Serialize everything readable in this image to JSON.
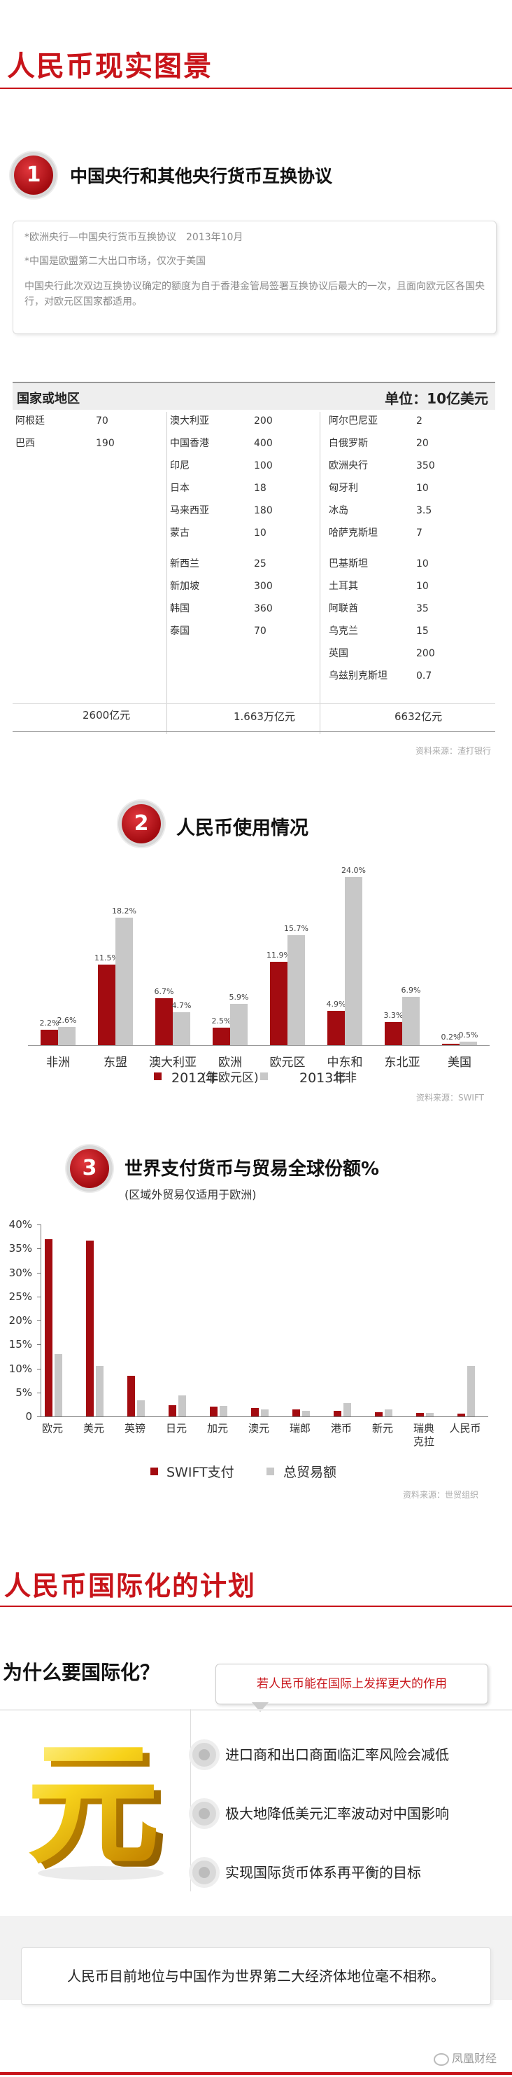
{
  "header": {
    "title": "人民币现实图景"
  },
  "section1": {
    "number": "1",
    "title": "中国央行和其他央行货币互换协议",
    "note1": "*欧洲央行—中国央行货币互换协议　2013年10月",
    "note2": "*中国是欧盟第二大出口市场，仅次于美国",
    "note3": "中国央行此次双边互换协议确定的额度为自于香港金管局签署互换协议后最大的一次，且面向欧元区各国央行，对欧元区国家都适用。",
    "table_header_left": "国家或地区",
    "table_header_right": "单位：10亿美元",
    "col1": [
      {
        "name": "阿根廷",
        "value": "70"
      },
      {
        "name": "巴西",
        "value": "190"
      }
    ],
    "col2": [
      {
        "name": "澳大利亚",
        "value": "200"
      },
      {
        "name": "中国香港",
        "value": "400"
      },
      {
        "name": "印尼",
        "value": "100"
      },
      {
        "name": "日本",
        "value": "18"
      },
      {
        "name": "马来西亚",
        "value": "180"
      },
      {
        "name": "蒙古",
        "value": "10"
      },
      {
        "name": "新西兰",
        "value": "25"
      },
      {
        "name": "新加坡",
        "value": "300"
      },
      {
        "name": "韩国",
        "value": "360"
      },
      {
        "name": "泰国",
        "value": "70"
      }
    ],
    "col3": [
      {
        "name": "阿尔巴尼亚",
        "value": "2"
      },
      {
        "name": "白俄罗斯",
        "value": "20"
      },
      {
        "name": "欧洲央行",
        "value": "350"
      },
      {
        "name": "匈牙利",
        "value": "10"
      },
      {
        "name": "冰岛",
        "value": "3.5"
      },
      {
        "name": "哈萨克斯坦",
        "value": "7"
      },
      {
        "name": "巴基斯坦",
        "value": "10"
      },
      {
        "name": "土耳其",
        "value": "10"
      },
      {
        "name": "阿联酋",
        "value": "35"
      },
      {
        "name": "乌克兰",
        "value": "15"
      },
      {
        "name": "英国",
        "value": "200"
      },
      {
        "name": "乌兹别克斯坦",
        "value": "0.7"
      }
    ],
    "totals": [
      "2600亿元",
      "1.663万亿元",
      "6632亿元"
    ],
    "source": "资料来源：渣打银行"
  },
  "section2": {
    "number": "2",
    "title": "人民币使用情况",
    "source": "资料来源：SWIFT",
    "chart_data": {
      "type": "bar",
      "categories": [
        "非洲",
        "东盟",
        "澳大利亚",
        "欧洲\n(非欧元区)",
        "欧元区",
        "中东和\n北非",
        "东北亚",
        "美国"
      ],
      "series": [
        {
          "name": "2012年",
          "values": [
            2.2,
            11.5,
            6.7,
            2.5,
            11.9,
            4.9,
            3.3,
            0.2
          ],
          "labels": [
            "2.2%",
            "11.5%",
            "6.7%",
            "2.5%",
            "11.9%",
            "4.9%",
            "3.3%",
            "0.2%"
          ],
          "color": "#a30b10"
        },
        {
          "name": "2013年",
          "values": [
            2.6,
            18.2,
            4.7,
            5.9,
            15.7,
            24.0,
            6.9,
            0.5
          ],
          "labels": [
            "2.6%",
            "18.2%",
            "4.7%",
            "5.9%",
            "15.7%",
            "24.0%",
            "6.9%",
            "0.5%"
          ],
          "color": "#c8c8c8"
        }
      ],
      "ylim": [
        0,
        25
      ]
    }
  },
  "section3": {
    "number": "3",
    "title": "世界支付货币与贸易全球份额%",
    "subtitle": "(区域外贸易仅适用于欧洲)",
    "source": "资料来源：世贸组织",
    "chart_data": {
      "type": "bar",
      "categories": [
        "欧元",
        "美元",
        "英镑",
        "日元",
        "加元",
        "澳元",
        "瑞郎",
        "港币",
        "新元",
        "瑞典\n克拉",
        "人民币"
      ],
      "y_ticks": [
        "0",
        "5%",
        "10%",
        "15%",
        "20%",
        "25%",
        "30%",
        "35%",
        "40%"
      ],
      "series": [
        {
          "name": "SWIFT支付",
          "values": [
            37.0,
            36.7,
            8.5,
            2.4,
            2.0,
            1.8,
            1.4,
            1.2,
            0.9,
            0.7,
            0.6
          ],
          "color": "#a30b10"
        },
        {
          "name": "总贸易额",
          "values": [
            13.0,
            10.5,
            3.3,
            4.4,
            2.2,
            1.5,
            1.2,
            2.8,
            1.5,
            0.8,
            10.5
          ],
          "color": "#c8c8c8"
        }
      ],
      "ylim": [
        0,
        40
      ]
    }
  },
  "section4": {
    "title": "人民币国际化的计划",
    "question": "为什么要国际化？",
    "callout": "若人民币能在国际上发挥更大的作用",
    "yuan_glyph": "元",
    "reasons": [
      "进口商和出口商面临汇率风险会减低",
      "极大地降低美元汇率波动对中国影响",
      "实现国际货币体系再平衡的目标"
    ],
    "summary": "人民币目前地位与中国作为世界第二大经济体地位毫不相称。",
    "watermark": "凤凰财经"
  }
}
